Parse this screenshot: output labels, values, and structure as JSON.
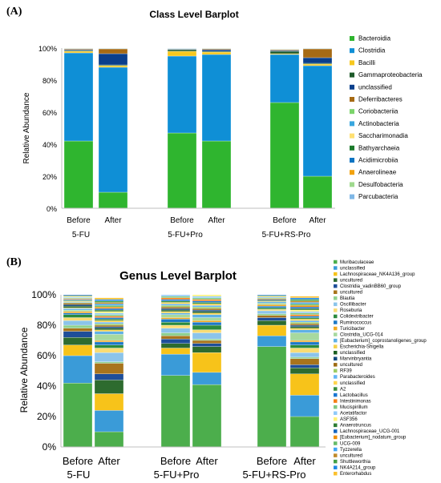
{
  "chart_data": [
    {
      "type": "bar",
      "stacked": true,
      "panel_label": "(A)",
      "title": "Class Level Barplot",
      "ylabel": "Relative Abundance",
      "ylim": [
        0,
        100
      ],
      "yticks": [
        "0%",
        "20%",
        "40%",
        "60%",
        "80%",
        "100%"
      ],
      "grid": false,
      "legend_position": "right",
      "categories": [
        "Before",
        "After",
        "Before",
        "After",
        "Before",
        "After"
      ],
      "groups": [
        "5-FU",
        "5-FU+Pro",
        "5-FU+RS-Pro"
      ],
      "series": [
        {
          "name": "Bacteroidia",
          "color": "#2fb52f",
          "values": [
            42,
            10,
            47,
            42,
            66,
            20
          ]
        },
        {
          "name": "Clostridia",
          "color": "#0f8fd6",
          "values": [
            55,
            78,
            48,
            54,
            30,
            69
          ]
        },
        {
          "name": "Bacilli",
          "color": "#f7c81e",
          "values": [
            1,
            1,
            3,
            1.5,
            0.5,
            1
          ]
        },
        {
          "name": "Gammaproteobacteria",
          "color": "#1d5a2a",
          "values": [
            0.5,
            0.5,
            1,
            0.5,
            1.5,
            0.5
          ]
        },
        {
          "name": "unclassified",
          "color": "#0a3f8c",
          "values": [
            0.5,
            7,
            0.3,
            1,
            0.5,
            3.5
          ]
        },
        {
          "name": "Deferribacteres",
          "color": "#a66a14",
          "values": [
            0.5,
            3,
            0.2,
            0.5,
            0.5,
            5.5
          ]
        },
        {
          "name": "Coriobacteriia",
          "color": "#7bd46a",
          "values": [
            0.2,
            0.2,
            0.2,
            0.2,
            0.2,
            0.2
          ]
        },
        {
          "name": "Actinobacteria",
          "color": "#39a7df",
          "values": [
            0.1,
            0.1,
            0.1,
            0.1,
            0.1,
            0.1
          ]
        },
        {
          "name": "Saccharimonadia",
          "color": "#ffe072",
          "values": [
            0.1,
            0.1,
            0.1,
            0.1,
            0.1,
            0.1
          ]
        },
        {
          "name": "Bathyarchaeia",
          "color": "#1b7a2b",
          "values": [
            0.05,
            0.05,
            0.05,
            0.05,
            0.05,
            0.05
          ]
        },
        {
          "name": "Acidimicrobiia",
          "color": "#0d74c2",
          "values": [
            0.05,
            0.05,
            0.05,
            0.05,
            0.05,
            0.05
          ]
        },
        {
          "name": "Anaerolineae",
          "color": "#f2a20d",
          "values": [
            0.05,
            0.05,
            0.05,
            0.05,
            0.05,
            0.05
          ]
        },
        {
          "name": "Desulfobacteria",
          "color": "#9fd98e",
          "values": [
            0.05,
            0.05,
            0.05,
            0.05,
            0.05,
            0.05
          ]
        },
        {
          "name": "Parcubacteria",
          "color": "#7fb7e6",
          "values": [
            0.05,
            0.05,
            0.05,
            0.05,
            0.05,
            0.05
          ]
        }
      ]
    },
    {
      "type": "bar",
      "stacked": true,
      "panel_label": "(B)",
      "title": "Genus Level Barplot",
      "ylabel": "Relative Abundance",
      "ylim": [
        0,
        100
      ],
      "yticks": [
        "0%",
        "20%",
        "40%",
        "60%",
        "80%",
        "100%"
      ],
      "grid": false,
      "legend_position": "right",
      "categories": [
        "Before",
        "After",
        "Before",
        "After",
        "Before",
        "After"
      ],
      "groups": [
        "5-FU",
        "5-FU+Pro",
        "5-FU+RS-Pro"
      ],
      "series": [
        {
          "name": "Muribaculaceae",
          "color": "#4cae4c",
          "values": [
            42,
            10,
            47,
            41,
            66,
            20
          ]
        },
        {
          "name": "unclassified",
          "color": "#3a9bd8",
          "values": [
            18,
            14,
            14,
            8,
            7,
            14
          ]
        },
        {
          "name": "Lachnospiraceae_NK4A136_group",
          "color": "#f7c31a",
          "values": [
            7,
            11,
            4,
            13,
            7,
            14
          ]
        },
        {
          "name": "uncultured",
          "color": "#2d6b2f",
          "values": [
            5,
            9,
            3,
            4,
            3,
            4
          ]
        },
        {
          "name": "Clostridia_vadinBB60_group",
          "color": "#1f4e99",
          "values": [
            4,
            4,
            3,
            2,
            2,
            2
          ]
        },
        {
          "name": "uncultured",
          "color": "#a8741c",
          "values": [
            2,
            7,
            2,
            2,
            1.5,
            4
          ]
        },
        {
          "name": "Blautia",
          "color": "#8fd18f",
          "values": [
            2,
            1,
            2,
            1,
            1,
            1
          ]
        },
        {
          "name": "Oscillibacter",
          "color": "#8bc4ea",
          "values": [
            3,
            6,
            3,
            4,
            2,
            3
          ]
        },
        {
          "name": "Roseburia",
          "color": "#f9dc73",
          "values": [
            2,
            3,
            2,
            2,
            1,
            3
          ]
        },
        {
          "name": "Colidextribacter",
          "color": "#2b8a3e",
          "values": [
            2,
            2,
            2,
            3,
            1,
            2
          ]
        },
        {
          "name": "Ruminococcus",
          "color": "#1d79c7",
          "values": [
            1,
            2,
            2,
            2,
            1,
            2
          ]
        },
        {
          "name": "Turicibacter",
          "color": "#f2a91f",
          "values": [
            1,
            1,
            1,
            1,
            1,
            1
          ]
        },
        {
          "name": "Clostridia_UCG-014",
          "color": "#a7d99f",
          "values": [
            1,
            4,
            2,
            2,
            1,
            5
          ]
        },
        {
          "name": "[Eubacterium]_coprostanoligenes_group",
          "color": "#5fb1e6",
          "values": [
            1,
            2,
            1,
            2,
            1,
            2
          ]
        },
        {
          "name": "Escherichia-Shigella",
          "color": "#f4d24a",
          "values": [
            0.5,
            1,
            1,
            1,
            0.5,
            1
          ]
        },
        {
          "name": "unclassified",
          "color": "#1b5e20",
          "values": [
            1,
            1,
            1,
            1,
            0.5,
            1
          ]
        },
        {
          "name": "Marvinbryantia",
          "color": "#12487d",
          "values": [
            1,
            1,
            1,
            1,
            0.5,
            1
          ]
        },
        {
          "name": "uncultured",
          "color": "#9e6a12",
          "values": [
            1,
            1,
            1,
            1,
            0.5,
            1
          ]
        },
        {
          "name": "RF39",
          "color": "#9ccc65",
          "values": [
            0.5,
            1,
            1,
            1,
            0.5,
            1
          ]
        },
        {
          "name": "Parabacteroides",
          "color": "#64b5f6",
          "values": [
            0.5,
            1,
            1,
            1,
            0.5,
            1
          ]
        },
        {
          "name": "unclassified",
          "color": "#ffd54f",
          "values": [
            0.5,
            1,
            1,
            1,
            0.5,
            1
          ]
        },
        {
          "name": "A2",
          "color": "#388e3c",
          "values": [
            0.5,
            1,
            1,
            1,
            0.5,
            1
          ]
        },
        {
          "name": "Lactobacillus",
          "color": "#1976d2",
          "values": [
            0.5,
            1,
            1,
            1,
            0.5,
            1
          ]
        },
        {
          "name": "Intestinimonas",
          "color": "#f57f17",
          "values": [
            0.5,
            1,
            1,
            1,
            0.5,
            1
          ]
        },
        {
          "name": "Mucispirillum",
          "color": "#81c784",
          "values": [
            0.5,
            1,
            1,
            1,
            0.5,
            1
          ]
        },
        {
          "name": "Acetatifactor",
          "color": "#90caf9",
          "values": [
            0.5,
            1,
            1,
            1,
            0.5,
            1
          ]
        },
        {
          "name": "ASF356",
          "color": "#fff176",
          "values": [
            0.5,
            1,
            1,
            1,
            0.5,
            1
          ]
        },
        {
          "name": "Anaerotruncus",
          "color": "#2e7d32",
          "values": [
            0.5,
            1,
            1,
            1,
            0.5,
            1
          ]
        },
        {
          "name": "Lachnospiraceae_UCG-001",
          "color": "#1565c0",
          "values": [
            0.5,
            1,
            1,
            1,
            0.5,
            1
          ]
        },
        {
          "name": "[Eubacterium]_nodatum_group",
          "color": "#ef8f00",
          "values": [
            0.5,
            1,
            1,
            1,
            0.5,
            1
          ]
        },
        {
          "name": "UCG-009",
          "color": "#66bb6a",
          "values": [
            0.5,
            1,
            1,
            1,
            0.5,
            1
          ]
        },
        {
          "name": "Tyzzerella",
          "color": "#42a5f5",
          "values": [
            0.5,
            1,
            1,
            1,
            0.5,
            1
          ]
        },
        {
          "name": "uncultured",
          "color": "#c08a2a",
          "values": [
            0.5,
            1,
            1,
            1,
            0.5,
            1
          ]
        },
        {
          "name": "Shuttleworthia",
          "color": "#43a047",
          "values": [
            0.5,
            1,
            1,
            1,
            0.5,
            1
          ]
        },
        {
          "name": "NK4A214_group",
          "color": "#1e88e5",
          "values": [
            0.5,
            1,
            1,
            1,
            0.5,
            1
          ]
        },
        {
          "name": "Enterorhabdus",
          "color": "#fbc02d",
          "values": [
            0.5,
            1,
            1,
            1,
            0.5,
            1
          ]
        }
      ]
    }
  ]
}
